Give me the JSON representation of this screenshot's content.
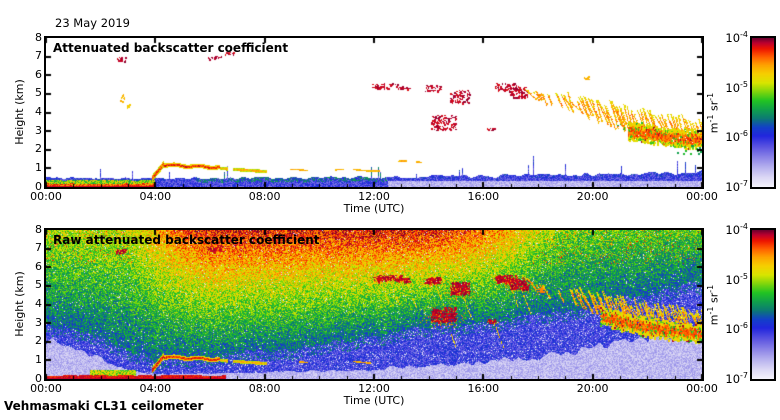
{
  "header": {
    "date_label": "23 May 2019"
  },
  "footer": {
    "instrument_label": "Vehmasmaki CL31 ceilometer"
  },
  "panels": [
    {
      "title": "Attenuated backscatter coefficient"
    },
    {
      "title": "Raw attenuated backscatter coefficient"
    }
  ],
  "axes": {
    "x": {
      "label": "Time (UTC)",
      "tick_labels": [
        "00:00",
        "04:00",
        "08:00",
        "12:00",
        "16:00",
        "20:00",
        "00:00"
      ],
      "range_hours": [
        0,
        24
      ],
      "major_tick_hours": 4,
      "minor_tick_hours": 1
    },
    "y": {
      "label": "Height (km)",
      "tick_labels": [
        "0",
        "1",
        "2",
        "3",
        "4",
        "5",
        "6",
        "7",
        "8"
      ],
      "range_km": [
        0,
        8
      ]
    }
  },
  "colorbar": {
    "scale": "log10",
    "tick_labels": [
      {
        "mantissa": "10",
        "exponent": "-4"
      },
      {
        "mantissa": "10",
        "exponent": "-5"
      },
      {
        "mantissa": "10",
        "exponent": "-6"
      },
      {
        "mantissa": "10",
        "exponent": "-7"
      }
    ],
    "unit_segments": [
      {
        "text": "m",
        "sup": false
      },
      {
        "text": "-1",
        "sup": true
      },
      {
        "text": " sr",
        "sup": false
      },
      {
        "text": "-1",
        "sup": true
      }
    ],
    "colormap_stops": [
      [
        0.0,
        "#f4f2fc"
      ],
      [
        0.06,
        "#ddd9f6"
      ],
      [
        0.13,
        "#b6b1ef"
      ],
      [
        0.2,
        "#8a82e7"
      ],
      [
        0.27,
        "#5a53e1"
      ],
      [
        0.34,
        "#2327de"
      ],
      [
        0.4,
        "#1341c9"
      ],
      [
        0.46,
        "#0c7b74"
      ],
      [
        0.52,
        "#10a14b"
      ],
      [
        0.58,
        "#23c423"
      ],
      [
        0.64,
        "#80d70d"
      ],
      [
        0.7,
        "#d9e500"
      ],
      [
        0.76,
        "#f6d000"
      ],
      [
        0.82,
        "#ffa300"
      ],
      [
        0.88,
        "#ff5a00"
      ],
      [
        0.93,
        "#ee1500"
      ],
      [
        0.97,
        "#bc0030"
      ],
      [
        1.0,
        "#70002e"
      ]
    ]
  },
  "chart_data": [
    {
      "type": "heatmap",
      "title": "Attenuated backscatter coefficient",
      "xlabel": "Time (UTC)",
      "ylabel": "Height (km)",
      "x_range_hours": [
        0,
        24
      ],
      "y_range_km": [
        0,
        8
      ],
      "value_scale": "log10",
      "value_range": [
        1e-07,
        0.0001
      ],
      "unit": "m-1 sr-1",
      "features": {
        "noise_band_top_km": [
          [
            0,
            0.5
          ],
          [
            4,
            0.45
          ],
          [
            8,
            0.5
          ],
          [
            12,
            0.52
          ],
          [
            14,
            0.6
          ],
          [
            17,
            0.65
          ],
          [
            20,
            0.7
          ],
          [
            24,
            0.78
          ]
        ],
        "surface_aerosol": {
          "t_range": [
            0,
            4.0
          ],
          "top_km": 0.32
        },
        "plume": {
          "t_range": [
            3.88,
            4.32
          ],
          "z_from_km": 0.45,
          "z_to_km": 1.25
        },
        "elevated_layer": {
          "t_range": [
            4.32,
            6.35
          ],
          "z_km": [
            1.18,
            1.05
          ]
        },
        "descending_layer": {
          "t_range": [
            6.35,
            8.1
          ],
          "z_km": [
            1.0,
            0.82
          ]
        },
        "dash_groups": [
          {
            "t_range": [
              8.1,
              12.65
            ],
            "z_km": 0.9,
            "on_prob": 0.55
          },
          {
            "t_range": [
              12.3,
              13.75
            ],
            "z_km": 1.34,
            "on_prob": 0.45
          }
        ],
        "clouds": [
          [
            2.75,
            6.85,
            0.18,
            0.12,
            0.99,
            0.5
          ],
          [
            2.8,
            4.78,
            0.1,
            0.22,
            0.82,
            0.5
          ],
          [
            3.02,
            4.35,
            0.06,
            0.1,
            0.8,
            0.5
          ],
          [
            6.2,
            6.95,
            0.3,
            0.1,
            0.99,
            0.35
          ],
          [
            6.75,
            7.15,
            0.2,
            0.08,
            0.99,
            0.35
          ],
          [
            12.15,
            5.3,
            0.1,
            0.1,
            0.99,
            0.5
          ],
          [
            12.5,
            5.42,
            0.55,
            0.15,
            0.99,
            0.45
          ],
          [
            13.1,
            5.3,
            0.2,
            0.12,
            0.99,
            0.5
          ],
          [
            14.15,
            5.28,
            0.3,
            0.18,
            0.99,
            0.6
          ],
          [
            14.55,
            3.45,
            0.45,
            0.4,
            0.99,
            0.7
          ],
          [
            15.15,
            4.85,
            0.35,
            0.35,
            0.99,
            0.7
          ],
          [
            16.3,
            3.1,
            0.15,
            0.1,
            0.99,
            0.6
          ],
          [
            16.85,
            5.35,
            0.4,
            0.22,
            0.99,
            0.75
          ],
          [
            17.3,
            5.1,
            0.35,
            0.28,
            0.99,
            0.75
          ],
          [
            18.1,
            4.85,
            0.12,
            0.18,
            0.86,
            0.6
          ],
          [
            19.8,
            5.85,
            0.1,
            0.1,
            0.82,
            0.5
          ]
        ],
        "streaks": {
          "t_range": [
            17.3,
            24
          ],
          "top": [
            [
              17.3,
              5.45
            ],
            [
              20,
              4.6
            ],
            [
              22,
              4.0
            ],
            [
              24,
              3.5
            ]
          ],
          "bottom": [
            [
              17.3,
              5.0
            ],
            [
              19,
              4.0
            ],
            [
              21,
              3.0
            ],
            [
              24,
              2.4
            ]
          ],
          "band_t": [
            21.3,
            24
          ],
          "band_z": [
            [
              21.3,
              3.05
            ],
            [
              22.2,
              2.8
            ],
            [
              23.2,
              2.6
            ],
            [
              24,
              2.55
            ]
          ]
        }
      }
    },
    {
      "type": "heatmap",
      "title": "Raw attenuated backscatter coefficient",
      "xlabel": "Time (UTC)",
      "ylabel": "Height (km)",
      "x_range_hours": [
        0,
        24
      ],
      "y_range_km": [
        0,
        8
      ],
      "value_scale": "log10",
      "value_range": [
        1e-07,
        0.0001
      ],
      "unit": "m-1 sr-1",
      "noise_model": {
        "blue_top_km": [
          [
            0,
            3.0
          ],
          [
            2,
            2.2
          ],
          [
            3,
            1.5
          ],
          [
            4,
            1.0
          ],
          [
            6,
            1.2
          ],
          [
            8,
            1.5
          ],
          [
            10,
            1.8
          ],
          [
            12,
            2.2
          ],
          [
            14,
            2.8
          ],
          [
            16,
            3.0
          ],
          [
            18,
            3.4
          ],
          [
            20,
            3.9
          ],
          [
            22,
            4.6
          ],
          [
            24,
            5.2
          ]
        ],
        "white_top_km": [
          [
            0,
            2.0
          ],
          [
            1,
            1.6
          ],
          [
            2,
            1.0
          ],
          [
            3,
            0.45
          ],
          [
            4,
            0.25
          ],
          [
            8,
            0.35
          ],
          [
            12,
            0.5
          ],
          [
            16,
            0.9
          ],
          [
            18,
            1.2
          ],
          [
            20,
            1.7
          ],
          [
            22,
            2.2
          ],
          [
            24,
            2.7
          ]
        ],
        "top_value": [
          [
            0,
            0.68
          ],
          [
            3,
            0.7
          ],
          [
            5,
            0.88
          ],
          [
            6,
            0.93
          ],
          [
            14,
            0.93
          ],
          [
            16,
            0.86
          ],
          [
            17,
            0.8
          ],
          [
            18,
            0.7
          ],
          [
            19,
            0.63
          ],
          [
            24,
            0.6
          ]
        ]
      },
      "features": {
        "surface_aerosol": {
          "t_range": [
            0,
            6.6
          ],
          "top_km": 0.22
        },
        "plume": {
          "t_range": [
            3.88,
            4.32
          ],
          "z_from_km": 0.45,
          "z_to_km": 1.25
        },
        "elevated_layer": {
          "t_range": [
            4.32,
            6.35
          ],
          "z_km": [
            1.18,
            1.05
          ]
        },
        "descending_layer": {
          "t_range": [
            6.35,
            8.1
          ],
          "z_km": [
            1.0,
            0.82
          ]
        },
        "dash_groups": [
          {
            "t_range": [
              8.1,
              12.2
            ],
            "z_km": 0.9,
            "on_prob": 0.4
          }
        ],
        "clouds": [
          [
            2.75,
            6.85,
            0.18,
            0.12,
            0.99,
            0.5
          ],
          [
            6.2,
            6.95,
            0.3,
            0.1,
            0.99,
            0.35
          ],
          [
            12.15,
            5.3,
            0.1,
            0.1,
            0.99,
            0.5
          ],
          [
            12.5,
            5.42,
            0.55,
            0.15,
            0.99,
            0.45
          ],
          [
            13.1,
            5.3,
            0.2,
            0.12,
            0.99,
            0.5
          ],
          [
            14.15,
            5.28,
            0.3,
            0.18,
            0.99,
            0.6
          ],
          [
            14.55,
            3.45,
            0.45,
            0.4,
            0.99,
            0.7
          ],
          [
            15.15,
            4.85,
            0.35,
            0.35,
            0.99,
            0.7
          ],
          [
            16.3,
            3.1,
            0.15,
            0.1,
            0.99,
            0.6
          ],
          [
            16.85,
            5.35,
            0.4,
            0.22,
            0.99,
            0.75
          ],
          [
            17.3,
            5.1,
            0.35,
            0.28,
            0.99,
            0.75
          ],
          [
            18.1,
            4.85,
            0.12,
            0.18,
            0.86,
            0.6
          ]
        ],
        "streaks": {
          "t_range": [
            17.3,
            24
          ],
          "top": [
            [
              17.3,
              5.45
            ],
            [
              20,
              4.6
            ],
            [
              22,
              4.0
            ],
            [
              24,
              3.5
            ]
          ],
          "bottom": [
            [
              17.3,
              5.0
            ],
            [
              19,
              4.0
            ],
            [
              21,
              3.0
            ],
            [
              24,
              2.3
            ]
          ],
          "band_t": [
            20.3,
            24
          ],
          "band_z": [
            [
              20.3,
              3.4
            ],
            [
              21.3,
              3.0
            ],
            [
              22.2,
              2.75
            ],
            [
              23.2,
              2.55
            ],
            [
              24,
              2.45
            ]
          ]
        }
      }
    }
  ]
}
